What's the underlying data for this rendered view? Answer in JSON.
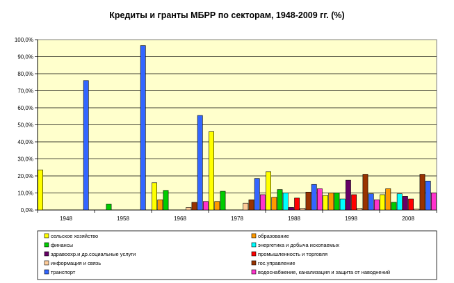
{
  "chart_data": {
    "type": "bar",
    "title": "Кредиты и гранты МБРР по секторам, 1948-2009 гг. (%)",
    "xlabel": "",
    "ylabel": "",
    "ylim": [
      0,
      100
    ],
    "y_ticks": [
      "0,0%",
      "10,0%",
      "20,0%",
      "30,0%",
      "40,0%",
      "50,0%",
      "60,0%",
      "70,0%",
      "80,0%",
      "90,0%",
      "100,0%"
    ],
    "categories": [
      "1948",
      "1958",
      "1968",
      "1978",
      "1988",
      "1998",
      "2008"
    ],
    "grid": true,
    "legend_position": "bottom",
    "plot_background": "#ffffcc",
    "series": [
      {
        "name": "сельское хозяйство",
        "color": "#ffff00",
        "values": [
          23.5,
          0,
          16,
          46,
          22.5,
          8.5,
          9
        ]
      },
      {
        "name": "образование",
        "color": "#ff9900",
        "values": [
          0,
          0,
          6,
          5,
          7.5,
          10,
          12.5
        ]
      },
      {
        "name": "финансы",
        "color": "#00cc00",
        "values": [
          0,
          3.5,
          11.5,
          11,
          12,
          10,
          4.5
        ]
      },
      {
        "name": "энергетика и добыча ископаемых",
        "color": "#00ffff",
        "values": [
          0,
          0,
          0,
          0,
          10,
          6.5,
          9.5
        ]
      },
      {
        "name": "здравоохр.и др.социальные услуги",
        "color": "#660066",
        "values": [
          0,
          0,
          0,
          0,
          1.5,
          17.5,
          8
        ]
      },
      {
        "name": "промышленность и торговля",
        "color": "#ff0000",
        "values": [
          0,
          0,
          0,
          0,
          7,
          9,
          6.5
        ]
      },
      {
        "name": "информация и связь",
        "color": "#ffcc99",
        "values": [
          0,
          0,
          1.5,
          4,
          1,
          1,
          0.5
        ]
      },
      {
        "name": "гос.управление",
        "color": "#993300",
        "values": [
          0,
          0,
          4.5,
          6,
          10.5,
          21,
          21
        ]
      },
      {
        "name": "транспорт",
        "color": "#3366ff",
        "values": [
          76,
          96.5,
          55.5,
          18.5,
          15,
          9.5,
          17
        ]
      },
      {
        "name": "водоснабжение, канализация и защита от наводнений",
        "color": "#ff33cc",
        "values": [
          0,
          0,
          5,
          9,
          12.5,
          6,
          10
        ]
      }
    ]
  }
}
